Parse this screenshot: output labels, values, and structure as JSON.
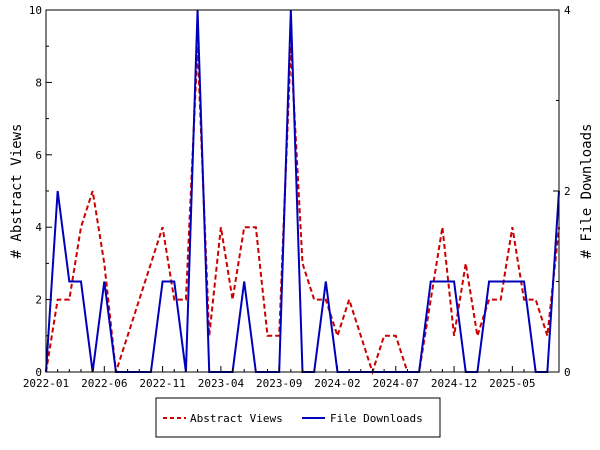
{
  "chart_data": {
    "type": "line",
    "x_axis": {
      "tick_labels": [
        "2022-01",
        "2022-06",
        "2022-11",
        "2023-04",
        "2023-09",
        "2024-02",
        "2024-07",
        "2024-12",
        "2025-05"
      ]
    },
    "y_axis_left": {
      "label": "# Abstract Views",
      "range": [
        0,
        10
      ],
      "ticks": [
        0,
        2,
        4,
        6,
        8,
        10
      ]
    },
    "y_axis_right": {
      "label": "# File Downloads",
      "range": [
        0,
        4
      ],
      "ticks": [
        0,
        2,
        4
      ]
    },
    "x": [
      "2022-01",
      "2022-02",
      "2022-03",
      "2022-04",
      "2022-05",
      "2022-06",
      "2022-07",
      "2022-08",
      "2022-09",
      "2022-10",
      "2022-11",
      "2022-12",
      "2023-01",
      "2023-02",
      "2023-03",
      "2023-04",
      "2023-05",
      "2023-06",
      "2023-07",
      "2023-08",
      "2023-09",
      "2023-10",
      "2023-11",
      "2023-12",
      "2024-01",
      "2024-02",
      "2024-03",
      "2024-04",
      "2024-05",
      "2024-06",
      "2024-07",
      "2024-08",
      "2024-09",
      "2024-10",
      "2024-11",
      "2024-12",
      "2025-01",
      "2025-02",
      "2025-03",
      "2025-04",
      "2025-05",
      "2025-06",
      "2025-07",
      "2025-08",
      "2025-09"
    ],
    "series": [
      {
        "name": "Abstract Views",
        "axis": "left",
        "color": "#cc0000",
        "style": "dashed",
        "values": [
          0,
          2,
          2,
          4,
          5,
          3,
          0,
          1,
          2,
          3,
          4,
          2,
          2,
          9,
          1,
          4,
          2,
          4,
          4,
          1,
          1,
          9,
          3,
          2,
          2,
          1,
          2,
          1,
          0,
          1,
          1,
          0,
          0,
          2,
          4,
          1,
          3,
          1,
          2,
          2,
          4,
          2,
          2,
          1,
          4
        ]
      },
      {
        "name": "File Downloads",
        "axis": "right",
        "color": "#0000bb",
        "style": "solid",
        "values": [
          0,
          2,
          1,
          1,
          0,
          1,
          0,
          0,
          0,
          0,
          1,
          1,
          0,
          4,
          0,
          0,
          0,
          1,
          0,
          0,
          0,
          4,
          0,
          0,
          1,
          0,
          0,
          0,
          0,
          0,
          0,
          0,
          0,
          1,
          1,
          1,
          0,
          0,
          1,
          1,
          1,
          1,
          0,
          0,
          2
        ]
      }
    ],
    "legend": {
      "position": "bottom",
      "entries": [
        "Abstract Views",
        "File Downloads"
      ]
    },
    "grid": false
  }
}
